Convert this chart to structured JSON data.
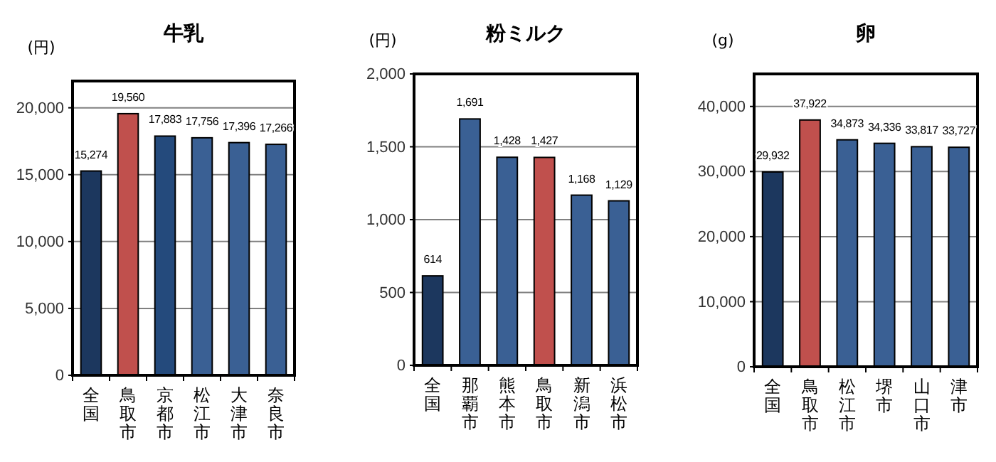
{
  "chart_data": [
    {
      "type": "bar",
      "title": "牛乳",
      "ylabel": "(円)",
      "categories": [
        "全国",
        "鳥取市",
        "京都市",
        "松江市",
        "大津市",
        "奈良市"
      ],
      "values": [
        15274,
        19560,
        17883,
        17756,
        17396,
        17266
      ],
      "colors": [
        "#1c375e",
        "#c0504d",
        "#244a7c",
        "#3a6094",
        "#3a6094",
        "#3a6094"
      ],
      "ylim": [
        0,
        22000
      ],
      "yticks": [
        {
          "value": 0,
          "label": "0"
        },
        {
          "value": 5000,
          "label": "5,000"
        },
        {
          "value": 10000,
          "label": "10,000"
        },
        {
          "value": 15000,
          "label": "15,000"
        },
        {
          "value": 20000,
          "label": "20,000"
        }
      ],
      "grid": "y",
      "data_labels": true,
      "value_labels": [
        "15,274",
        "19,560",
        "17,883",
        "17,756",
        "17,396",
        "17,266"
      ]
    },
    {
      "type": "bar",
      "title": "粉ミルク",
      "ylabel": "(円)",
      "categories": [
        "全国",
        "那覇市",
        "熊本市",
        "鳥取市",
        "新潟市",
        "浜松市"
      ],
      "values": [
        614,
        1691,
        1428,
        1427,
        1168,
        1129
      ],
      "colors": [
        "#1c375e",
        "#3a6094",
        "#3a6094",
        "#c0504d",
        "#3a6094",
        "#3a6094"
      ],
      "ylim": [
        0,
        2000
      ],
      "yticks": [
        {
          "value": 0,
          "label": "0"
        },
        {
          "value": 500,
          "label": "500"
        },
        {
          "value": 1000,
          "label": "1,000"
        },
        {
          "value": 1500,
          "label": "1,500"
        },
        {
          "value": 2000,
          "label": "2,000"
        }
      ],
      "grid": "y",
      "data_labels": true,
      "value_labels": [
        "614",
        "1,691",
        "1,428",
        "1,427",
        "1,168",
        "1,129"
      ]
    },
    {
      "type": "bar",
      "title": "卵",
      "ylabel": "(g)",
      "categories": [
        "全国",
        "鳥取市",
        "松江市",
        "堺市",
        "山口市",
        "津市"
      ],
      "values": [
        29932,
        37922,
        34873,
        34336,
        33817,
        33727
      ],
      "colors": [
        "#1c375e",
        "#c0504d",
        "#3a6094",
        "#3a6094",
        "#3a6094",
        "#3a6094"
      ],
      "ylim": [
        0,
        45000
      ],
      "yticks": [
        {
          "value": 0,
          "label": "0"
        },
        {
          "value": 10000,
          "label": "10,000"
        },
        {
          "value": 20000,
          "label": "20,000"
        },
        {
          "value": 30000,
          "label": "30,000"
        },
        {
          "value": 40000,
          "label": "40,000"
        }
      ],
      "grid": "y",
      "data_labels": true,
      "value_labels": [
        "29,932",
        "37,922",
        "34,873",
        "34,336",
        "33,817",
        "33,727"
      ]
    }
  ]
}
